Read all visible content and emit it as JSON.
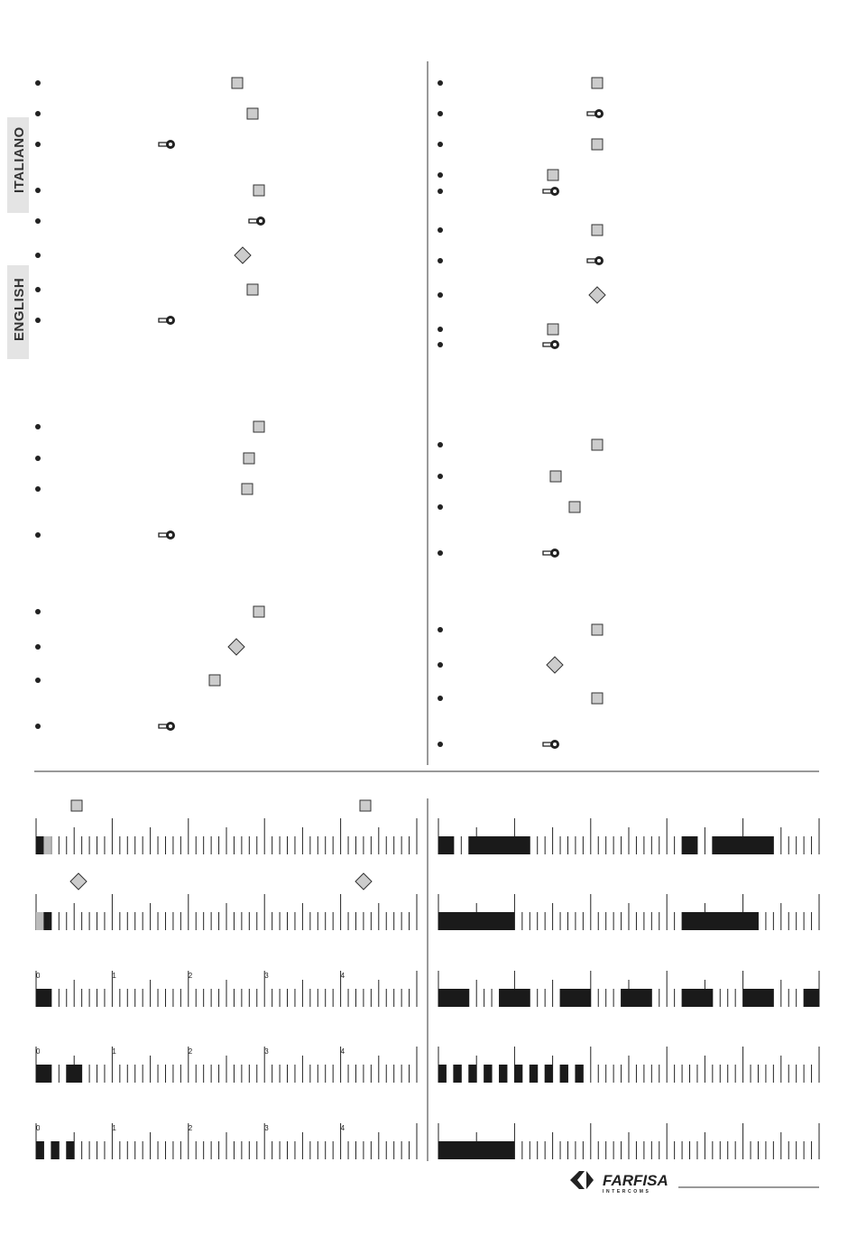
{
  "side_tabs": [
    "ITALIANO",
    "ENGLISH"
  ],
  "timelines": [
    {
      "labels": [
        "0",
        "1",
        "2",
        "3",
        "4"
      ]
    },
    {
      "labels": [
        "0",
        "1",
        "2",
        "3",
        "4"
      ]
    },
    {
      "labels": [
        "0",
        "1",
        "2",
        "3",
        "4"
      ]
    }
  ],
  "logo": {
    "name": "FARFISA",
    "tagline": "INTERCOMS"
  }
}
